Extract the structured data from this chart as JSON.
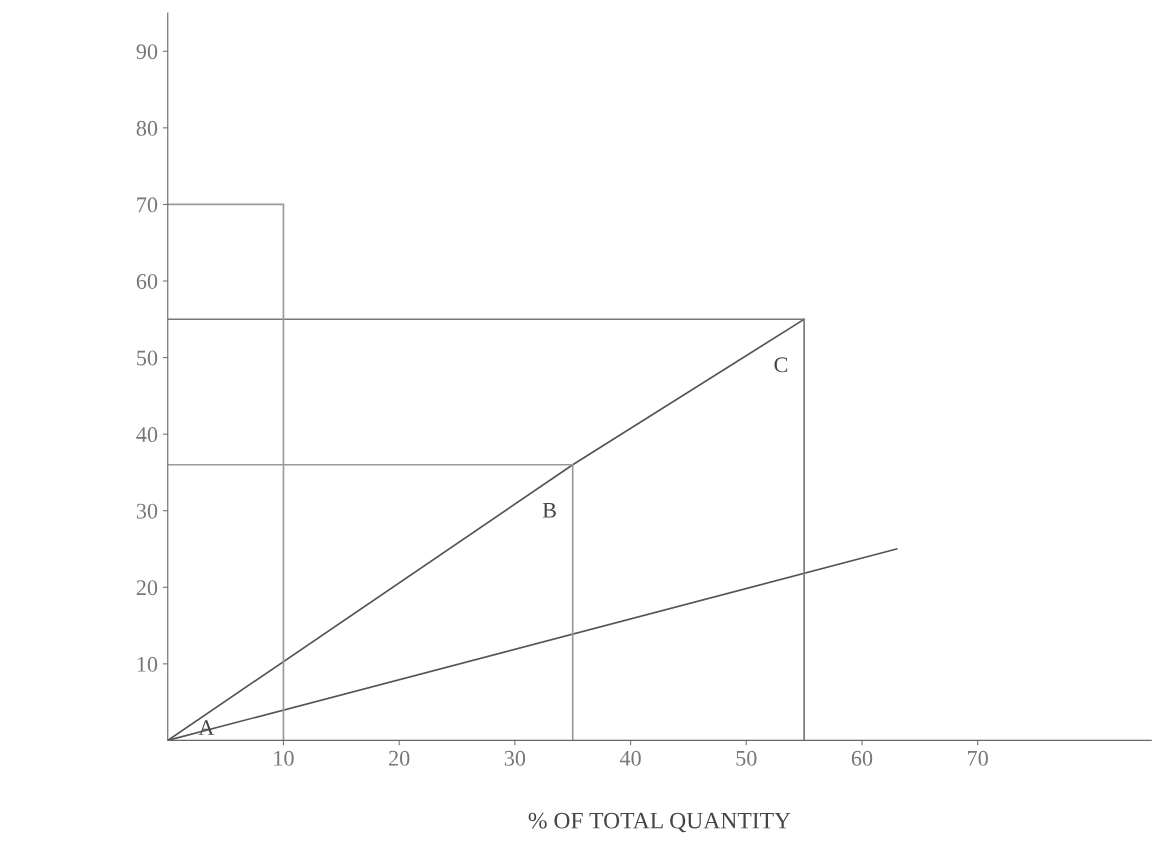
{
  "chart_data": {
    "type": "line",
    "xlabel": "% OF TOTAL QUANTITY",
    "xlim": [
      0,
      85
    ],
    "ylim": [
      0,
      95
    ],
    "xticks": [
      10,
      20,
      30,
      40,
      50,
      60,
      70
    ],
    "yticks": [
      10,
      20,
      30,
      40,
      50,
      60,
      70,
      80,
      90
    ],
    "grid": false,
    "legend": false,
    "marker": "none",
    "line_style": "solid",
    "series": [
      {
        "x": [
          0,
          35,
          55
        ],
        "values": [
          0,
          36,
          55
        ],
        "color": "#555555"
      },
      {
        "x": [
          0,
          63
        ],
        "values": [
          0,
          25
        ],
        "color": "#555555"
      },
      {
        "x": [
          0,
          35,
          35
        ],
        "values": [
          36,
          36,
          0
        ],
        "color": "#999999"
      },
      {
        "x": [
          0,
          55,
          55
        ],
        "values": [
          55,
          55,
          0
        ],
        "color": "#777777"
      },
      {
        "x": [
          0,
          10,
          10
        ],
        "values": [
          70,
          70,
          0
        ],
        "color": "#999999"
      }
    ],
    "annotations": [
      {
        "text": "A",
        "x": 0,
        "y": 0
      },
      {
        "text": "B",
        "x": 35,
        "y": 36
      },
      {
        "text": "C",
        "x": 55,
        "y": 55
      }
    ]
  }
}
